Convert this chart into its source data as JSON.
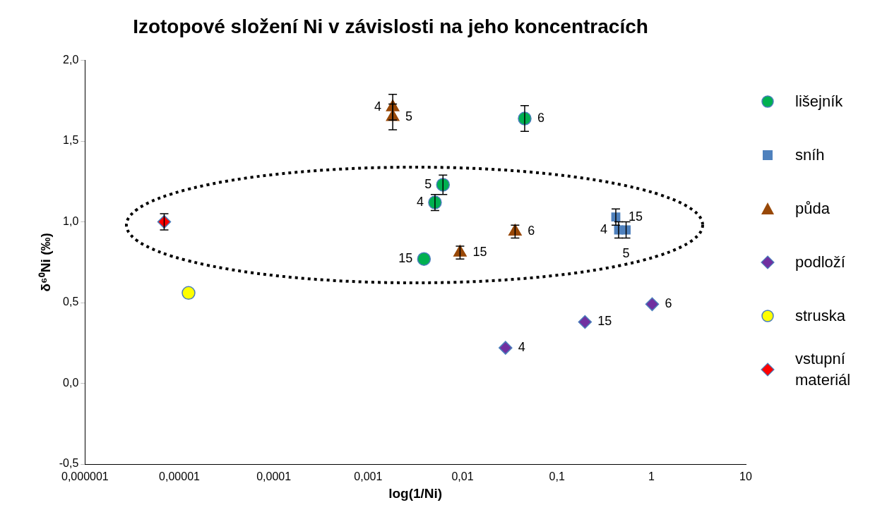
{
  "chart_data": {
    "type": "scatter",
    "title": "Izotopové složení Ni v závislosti na jeho koncentracích",
    "xlabel": "log(1/Ni)",
    "ylabel": "δ⁶⁰Ni (‰)",
    "log": "x",
    "grid": false,
    "legend": "right",
    "xlim": [
      1e-06,
      10
    ],
    "xticks": [
      {
        "value": 1e-06,
        "label": "0,000001"
      },
      {
        "value": 1e-05,
        "label": "0,00001"
      },
      {
        "value": 0.0001,
        "label": "0,0001"
      },
      {
        "value": 0.001,
        "label": "0,001"
      },
      {
        "value": 0.01,
        "label": "0,01"
      },
      {
        "value": 0.1,
        "label": "0,1"
      },
      {
        "value": 1,
        "label": "1"
      },
      {
        "value": 10,
        "label": "10"
      }
    ],
    "ylim": [
      -0.5,
      2
    ],
    "yticks": [
      {
        "value": -0.5,
        "label": "-0,5"
      },
      {
        "value": 0,
        "label": "0,0"
      },
      {
        "value": 0.5,
        "label": "0,5"
      },
      {
        "value": 1,
        "label": "1,0"
      },
      {
        "value": 1.5,
        "label": "1,5"
      },
      {
        "value": 2,
        "label": "2,0"
      }
    ],
    "series": [
      {
        "name": "lišejník",
        "color": "#00b050",
        "marker": "circle",
        "x": [
          0.0455,
          0.0062,
          0.0051,
          0.0039
        ],
        "values": [
          1.64,
          1.23,
          1.12,
          0.77
        ],
        "errors": [
          0.08,
          0.06,
          0.05,
          null
        ]
      },
      {
        "name": "sníh",
        "color": "#4f81bd",
        "marker": "square",
        "x": [
          0.42,
          0.45,
          0.54
        ],
        "values": [
          1.03,
          0.95,
          0.95
        ],
        "errors": [
          0.05,
          0.05,
          0.05
        ]
      },
      {
        "name": "půda",
        "color": "#984807",
        "marker": "triangle",
        "x": [
          0.00182,
          0.00182,
          0.0094,
          0.036
        ],
        "values": [
          1.71,
          1.65,
          0.81,
          0.94
        ],
        "errors": [
          0.08,
          0.08,
          0.04,
          0.04
        ]
      },
      {
        "name": "podloží",
        "color": "#7030a0",
        "marker": "diamond",
        "x": [
          0.0285,
          0.198,
          1.02
        ],
        "values": [
          0.22,
          0.38,
          0.49
        ]
      },
      {
        "name": "struska",
        "color": "#ffff00",
        "marker": "circle",
        "x": [
          1.25e-05
        ],
        "values": [
          0.56
        ]
      },
      {
        "name": "vstupní materiál",
        "color": "#ff0000",
        "marker": "diamond",
        "x": [
          6.9e-06
        ],
        "values": [
          1.0
        ],
        "errors": [
          0.05
        ]
      }
    ],
    "annotations": [
      {
        "text": "6",
        "x": 0.0455,
        "y": 1.64
      },
      {
        "text": "5",
        "x": 0.0062,
        "y": 1.23
      },
      {
        "text": "4",
        "x": 0.0051,
        "y": 1.12
      },
      {
        "text": "15",
        "x": 0.0039,
        "y": 0.77
      },
      {
        "text": "15",
        "x": 0.42,
        "y": 1.03
      },
      {
        "text": "4",
        "x": 0.45,
        "y": 0.95
      },
      {
        "text": "5",
        "x": 0.54,
        "y": 0.95
      },
      {
        "text": "4",
        "x": 0.00182,
        "y": 1.71
      },
      {
        "text": "5",
        "x": 0.00182,
        "y": 1.65
      },
      {
        "text": "15",
        "x": 0.0094,
        "y": 0.81
      },
      {
        "text": "6",
        "x": 0.036,
        "y": 0.94
      },
      {
        "text": "4",
        "x": 0.0285,
        "y": 0.22
      },
      {
        "text": "15",
        "x": 0.198,
        "y": 0.38
      },
      {
        "text": "6",
        "x": 1.02,
        "y": 0.49
      }
    ]
  }
}
